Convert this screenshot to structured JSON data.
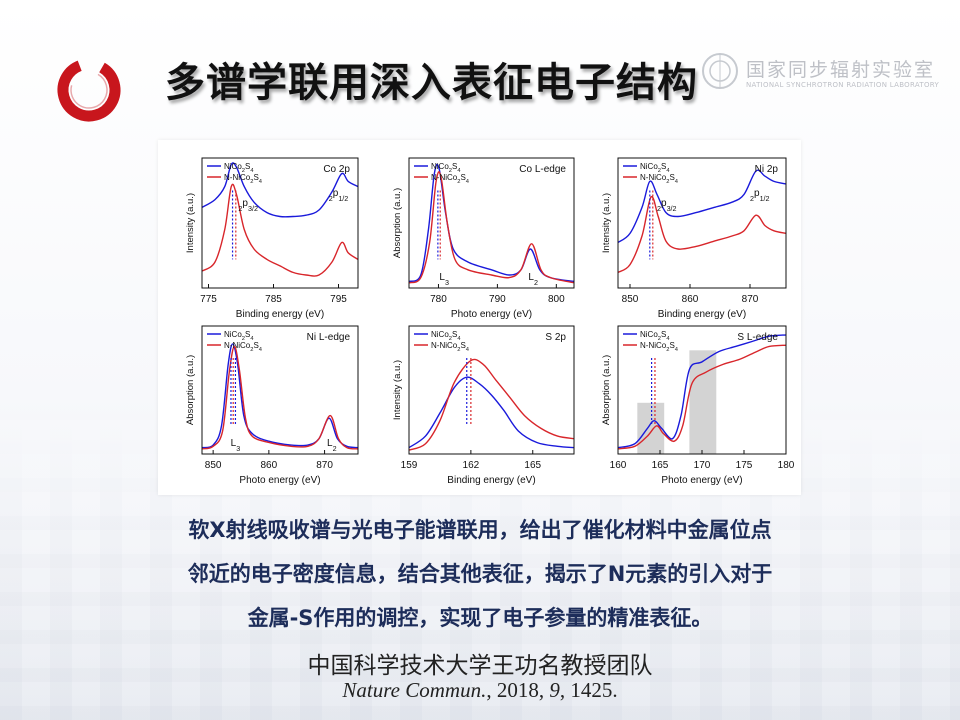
{
  "slide": {
    "title": "多谱学联用深入表征电子结构",
    "lab": {
      "cn": "国家同步辐射实验室",
      "en": "NATIONAL SYNCHROTRON RADIATION LABORATORY"
    },
    "caption_lines": [
      "软X射线吸收谱与光电子能谱联用，给出了催化材料中金属位点",
      "邻近的电子密度信息，结合其他表征，揭示了N元素的引入对于",
      "金属-S作用的调控，实现了电子参量的精准表征。"
    ],
    "credit": "中国科学技术大学王功名教授团队",
    "citation": {
      "journal": "Nature Commun.",
      "year": ", 2018, ",
      "volume": "9",
      "pages": ", 1425."
    },
    "colors": {
      "series_blue": "#1a1adb",
      "series_red": "#d8262b",
      "logo_red": "#c8161d",
      "caption": "#1d2d5a"
    }
  },
  "chart_data": [
    {
      "type": "line",
      "panel_label": "Co 2p",
      "xlabel": "Binding energy (eV)",
      "ylabel": "Intensity (a.u.)",
      "xlim": [
        774,
        798
      ],
      "xticks": [
        775,
        785,
        795
      ],
      "legend": [
        "NiCo2S4",
        "N-NiCo2S4"
      ],
      "annotations": [
        {
          "text": "2p3/2",
          "x": 779.6
        },
        {
          "text": "2p1/2",
          "x": 793.5
        }
      ],
      "peak_markers": [
        778.7,
        779.2
      ],
      "series": [
        {
          "name": "NiCo2S4",
          "x": [
            774,
            776,
            777.5,
            778.5,
            779.3,
            780.5,
            782,
            784,
            786,
            788,
            790,
            792,
            794,
            795.5,
            796.5,
            798
          ],
          "y": [
            0.62,
            0.68,
            0.78,
            0.95,
            0.93,
            0.78,
            0.66,
            0.58,
            0.55,
            0.55,
            0.56,
            0.6,
            0.74,
            0.88,
            0.82,
            0.78
          ]
        },
        {
          "name": "N-NiCo2S4",
          "x": [
            774,
            776,
            777.5,
            778.5,
            779.3,
            780.5,
            782,
            784,
            786,
            788,
            790,
            792,
            794,
            795.5,
            796.5,
            798
          ],
          "y": [
            0.13,
            0.2,
            0.45,
            0.78,
            0.72,
            0.45,
            0.3,
            0.22,
            0.17,
            0.12,
            0.1,
            0.1,
            0.2,
            0.35,
            0.27,
            0.22
          ]
        }
      ]
    },
    {
      "type": "line",
      "panel_label": "Co L-edge",
      "xlabel": "Photo energy (eV)",
      "ylabel": "Absorption (a.u.)",
      "xlim": [
        775,
        803
      ],
      "xticks": [
        780,
        790,
        800
      ],
      "legend": [
        "NiCo2S4",
        "N-NiCo2S4"
      ],
      "annotations": [
        {
          "text": "L3",
          "x": 780.5
        },
        {
          "text": "L2",
          "x": 795.6
        }
      ],
      "peak_markers": [
        779.9,
        780.3
      ],
      "series": [
        {
          "name": "NiCo2S4",
          "x": [
            775,
            777,
            778.3,
            779.3,
            780.1,
            781.2,
            782.5,
            785,
            789,
            792,
            794,
            795.6,
            797.2,
            799,
            803
          ],
          "y": [
            0.05,
            0.1,
            0.45,
            0.88,
            0.92,
            0.58,
            0.3,
            0.2,
            0.14,
            0.1,
            0.14,
            0.3,
            0.14,
            0.08,
            0.05
          ]
        },
        {
          "name": "N-NiCo2S4",
          "x": [
            775,
            777,
            778.5,
            779.6,
            780.4,
            781.5,
            782.8,
            785,
            789,
            792,
            794,
            795.8,
            797.4,
            799,
            803
          ],
          "y": [
            0.04,
            0.08,
            0.35,
            0.82,
            0.86,
            0.5,
            0.22,
            0.14,
            0.1,
            0.08,
            0.14,
            0.34,
            0.14,
            0.08,
            0.04
          ]
        }
      ]
    },
    {
      "type": "line",
      "panel_label": "Ni 2p",
      "xlabel": "Binding energy (eV)",
      "ylabel": "Intensity (a.u.)",
      "xlim": [
        848,
        876
      ],
      "xticks": [
        850,
        860,
        870
      ],
      "legend": [
        "NiCo2S4",
        "N-NiCo2S4"
      ],
      "annotations": [
        {
          "text": "2p3/2",
          "x": 854.5
        },
        {
          "text": "2p1/2",
          "x": 870
        }
      ],
      "peak_markers": [
        853.3,
        853.8
      ],
      "series": [
        {
          "name": "NiCo2S4",
          "x": [
            848,
            850,
            852,
            853.3,
            854.5,
            856,
            858,
            861,
            864,
            867,
            869,
            871,
            872.5,
            874,
            876
          ],
          "y": [
            0.35,
            0.42,
            0.62,
            0.82,
            0.72,
            0.58,
            0.55,
            0.58,
            0.62,
            0.66,
            0.72,
            0.9,
            0.86,
            0.82,
            0.8
          ]
        },
        {
          "name": "N-NiCo2S4",
          "x": [
            848,
            850,
            852,
            853.5,
            854.7,
            856,
            858,
            861,
            864,
            867,
            869,
            871,
            872.5,
            874,
            876
          ],
          "y": [
            0.12,
            0.18,
            0.4,
            0.7,
            0.55,
            0.36,
            0.3,
            0.32,
            0.36,
            0.4,
            0.44,
            0.56,
            0.48,
            0.44,
            0.42
          ]
        }
      ]
    },
    {
      "type": "line",
      "panel_label": "Ni L-edge",
      "xlabel": "Photo energy (eV)",
      "ylabel": "Absorption (a.u.)",
      "xlim": [
        848,
        876
      ],
      "xticks": [
        850,
        860,
        870
      ],
      "legend": [
        "NiCo2S4",
        "N-NiCo2S4"
      ],
      "annotations": [
        {
          "text": "L3",
          "x": 853.5
        },
        {
          "text": "L2",
          "x": 870.8
        }
      ],
      "peak_markers": [
        853.2,
        853.6,
        854.0
      ],
      "series": [
        {
          "name": "NiCo2S4",
          "x": [
            848,
            850,
            851.5,
            852.7,
            853.5,
            854.4,
            855.5,
            857,
            860,
            864,
            867,
            869,
            870.8,
            872.3,
            874,
            876
          ],
          "y": [
            0.05,
            0.07,
            0.22,
            0.7,
            0.86,
            0.7,
            0.3,
            0.16,
            0.1,
            0.07,
            0.07,
            0.12,
            0.28,
            0.12,
            0.06,
            0.05
          ]
        },
        {
          "name": "N-NiCo2S4",
          "x": [
            848,
            850,
            851.7,
            852.9,
            853.8,
            854.7,
            855.8,
            857,
            860,
            864,
            867,
            869,
            871,
            872.5,
            874,
            876
          ],
          "y": [
            0.04,
            0.06,
            0.18,
            0.64,
            0.84,
            0.66,
            0.28,
            0.14,
            0.09,
            0.06,
            0.06,
            0.12,
            0.3,
            0.12,
            0.05,
            0.04
          ]
        }
      ]
    },
    {
      "type": "line",
      "panel_label": "S 2p",
      "xlabel": "Binding energy (eV)",
      "ylabel": "Intensity (a.u.)",
      "xlim": [
        159,
        167
      ],
      "xticks": [
        159,
        162,
        165
      ],
      "legend": [
        "NiCo2S4",
        "N-NiCo2S4"
      ],
      "annotations": [],
      "peak_markers": [
        161.8,
        162.0
      ],
      "series": [
        {
          "name": "NiCo2S4",
          "x": [
            159,
            159.8,
            160.5,
            161.2,
            161.8,
            162.4,
            163,
            163.6,
            164.3,
            165.2,
            166.2,
            167
          ],
          "y": [
            0.05,
            0.14,
            0.32,
            0.52,
            0.6,
            0.55,
            0.46,
            0.34,
            0.18,
            0.09,
            0.06,
            0.05
          ]
        },
        {
          "name": "N-NiCo2S4",
          "x": [
            159,
            159.8,
            160.5,
            161.2,
            162.0,
            162.6,
            163.2,
            163.9,
            164.6,
            165.4,
            166.2,
            167
          ],
          "y": [
            0.03,
            0.08,
            0.26,
            0.56,
            0.73,
            0.7,
            0.58,
            0.44,
            0.3,
            0.2,
            0.14,
            0.12
          ]
        }
      ]
    },
    {
      "type": "line",
      "panel_label": "S L-edge",
      "xlabel": "Photo energy (eV)",
      "ylabel": "Absorption (a.u.)",
      "xlim": [
        160,
        180
      ],
      "xticks": [
        160,
        165,
        170,
        175,
        180
      ],
      "legend": [
        "NiCo2S4",
        "N-NiCo2S4"
      ],
      "annotations": [],
      "highlight_ranges": [
        [
          162.3,
          165.5
        ],
        [
          168.5,
          171.7
        ]
      ],
      "peak_markers": [
        164.0,
        164.4
      ],
      "series": [
        {
          "name": "NiCo2S4",
          "x": [
            160,
            162,
            163.5,
            164.3,
            165.2,
            166.5,
            167.5,
            168.5,
            170,
            172,
            174,
            176,
            178,
            180
          ],
          "y": [
            0.05,
            0.08,
            0.2,
            0.26,
            0.2,
            0.12,
            0.3,
            0.66,
            0.72,
            0.8,
            0.84,
            0.88,
            0.92,
            0.93
          ]
        },
        {
          "name": "N-NiCo2S4",
          "x": [
            160,
            162,
            163.5,
            164.6,
            165.4,
            166.7,
            167.7,
            168.8,
            170.5,
            172.5,
            174.5,
            176.5,
            178,
            180
          ],
          "y": [
            0.04,
            0.06,
            0.14,
            0.22,
            0.16,
            0.1,
            0.22,
            0.55,
            0.64,
            0.7,
            0.74,
            0.8,
            0.84,
            0.85
          ]
        }
      ]
    }
  ]
}
